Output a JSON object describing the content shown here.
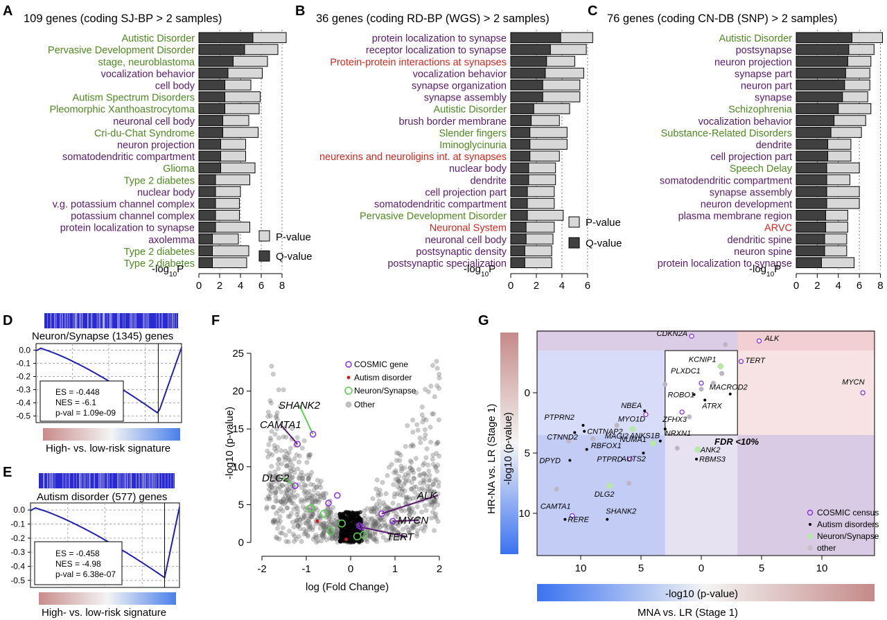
{
  "chart_data": [
    {
      "panel": "A",
      "type": "bar",
      "title": "109 genes (coding SJ-BP > 2 samples)",
      "xlabel": "-log10P",
      "xticks": [
        0,
        2,
        4,
        6,
        8
      ],
      "xlim": [
        0,
        8.8
      ],
      "legend": [
        "P-value",
        "Q-value"
      ],
      "terms": [
        {
          "label": "Autistic Disorder",
          "cat": "disease",
          "p": 8.4,
          "q": 5.2
        },
        {
          "label": "Pervasive Development Disorder",
          "cat": "disease",
          "p": 7.6,
          "q": 4.4
        },
        {
          "label": "stage, neuroblastoma",
          "cat": "disease",
          "p": 6.6,
          "q": 3.3
        },
        {
          "label": "vocalization behavior",
          "cat": "go",
          "p": 6.1,
          "q": 2.8
        },
        {
          "label": "cell body",
          "cat": "go",
          "p": 5.0,
          "q": 2.5
        },
        {
          "label": "Autism Spectrum Disorders",
          "cat": "disease",
          "p": 5.9,
          "q": 2.5
        },
        {
          "label": "Pleomorphic Xanthoastrocytoma",
          "cat": "disease",
          "p": 5.8,
          "q": 2.5
        },
        {
          "label": "neuronal cell body",
          "cat": "go",
          "p": 4.8,
          "q": 2.3
        },
        {
          "label": "Cri-du-Chat Syndrome",
          "cat": "disease",
          "p": 5.7,
          "q": 2.3
        },
        {
          "label": "neuron projection",
          "cat": "go",
          "p": 4.5,
          "q": 2.1
        },
        {
          "label": "somatodendritic compartment",
          "cat": "go",
          "p": 4.5,
          "q": 2.1
        },
        {
          "label": "Glioma",
          "cat": "disease",
          "p": 5.4,
          "q": 2.1
        },
        {
          "label": "Type 2 diabetes",
          "cat": "disease",
          "p": 4.9,
          "q": 1.6
        },
        {
          "label": "nuclear body",
          "cat": "go",
          "p": 4.0,
          "q": 1.6
        },
        {
          "label": "v.g. potassium channel complex",
          "cat": "go",
          "p": 3.9,
          "q": 1.6
        },
        {
          "label": "potassium channel complex",
          "cat": "go",
          "p": 3.9,
          "q": 1.6
        },
        {
          "label": "protein localization to synapse",
          "cat": "go",
          "p": 4.9,
          "q": 1.6
        },
        {
          "label": "axolemma",
          "cat": "go",
          "p": 3.8,
          "q": 1.3
        },
        {
          "label": "Type 2 diabetes",
          "cat": "disease",
          "p": 4.8,
          "q": 1.3
        },
        {
          "label": "Type 2 diabetes",
          "cat": "disease",
          "p": 4.6,
          "q": 1.3
        }
      ]
    },
    {
      "panel": "B",
      "type": "bar",
      "title": "36 genes (coding RD-BP (WGS) > 2 samples)",
      "xlabel": "-log10P",
      "xticks": [
        0,
        2,
        4,
        6
      ],
      "xlim": [
        0,
        6.6
      ],
      "legend": [
        "P-value",
        "Q-value"
      ],
      "terms": [
        {
          "label": "protein localization to synapse",
          "cat": "go",
          "p": 6.4,
          "q": 3.9
        },
        {
          "label": "receptor localization to synapse",
          "cat": "go",
          "p": 5.9,
          "q": 3.1
        },
        {
          "label": "Protein-protein interactions at synapses",
          "cat": "pathway",
          "p": 5.0,
          "q": 2.8
        },
        {
          "label": "vocalization behavior",
          "cat": "go",
          "p": 5.7,
          "q": 2.7
        },
        {
          "label": "synapse organization",
          "cat": "go",
          "p": 5.4,
          "q": 2.5
        },
        {
          "label": "synapse assembly",
          "cat": "go",
          "p": 5.4,
          "q": 2.5
        },
        {
          "label": "Autistic Disorder",
          "cat": "disease",
          "p": 4.6,
          "q": 1.8
        },
        {
          "label": "brush border membrane",
          "cat": "go",
          "p": 3.8,
          "q": 1.6
        },
        {
          "label": "Slender fingers",
          "cat": "disease",
          "p": 4.4,
          "q": 1.5
        },
        {
          "label": "Iminoglycinuria",
          "cat": "disease",
          "p": 4.4,
          "q": 1.5
        },
        {
          "label": "neurexins and neuroligins int. at synapses",
          "cat": "pathway",
          "p": 3.8,
          "q": 1.5
        },
        {
          "label": "nuclear body",
          "cat": "go",
          "p": 3.5,
          "q": 1.4
        },
        {
          "label": "dendrite",
          "cat": "go",
          "p": 3.5,
          "q": 1.4
        },
        {
          "label": "cell projection part",
          "cat": "go",
          "p": 3.4,
          "q": 1.3
        },
        {
          "label": "somatodendritic compartment",
          "cat": "go",
          "p": 3.4,
          "q": 1.3
        },
        {
          "label": "Pervasive Development Disorder",
          "cat": "disease",
          "p": 4.1,
          "q": 1.3
        },
        {
          "label": "Neuronal System",
          "cat": "pathway",
          "p": 3.4,
          "q": 1.2
        },
        {
          "label": "neuronal cell body",
          "cat": "go",
          "p": 3.3,
          "q": 1.2
        },
        {
          "label": "postsynaptic density",
          "cat": "go",
          "p": 3.2,
          "q": 1.1
        },
        {
          "label": "postsynaptic specialization",
          "cat": "go",
          "p": 3.2,
          "q": 1.1
        }
      ]
    },
    {
      "panel": "C",
      "type": "bar",
      "title": "76 genes (coding CN-DB (SNP) > 2 samples)",
      "xlabel": "-log10P",
      "xticks": [
        0,
        2,
        4,
        6,
        8
      ],
      "xlim": [
        0,
        8.3
      ],
      "legend": [],
      "terms": [
        {
          "label": "Autistic Disorder",
          "cat": "disease",
          "p": 8.2,
          "q": 5.3
        },
        {
          "label": "postsynapse",
          "cat": "go",
          "p": 7.4,
          "q": 5.0
        },
        {
          "label": "neuron projection",
          "cat": "go",
          "p": 7.1,
          "q": 4.9
        },
        {
          "label": "synapse part",
          "cat": "go",
          "p": 7.0,
          "q": 4.7
        },
        {
          "label": "neuron part",
          "cat": "go",
          "p": 7.0,
          "q": 4.6
        },
        {
          "label": "synapse",
          "cat": "go",
          "p": 6.8,
          "q": 4.4
        },
        {
          "label": "Schizophrenia",
          "cat": "disease",
          "p": 7.1,
          "q": 4.0
        },
        {
          "label": "vocalization behavior",
          "cat": "go",
          "p": 6.6,
          "q": 3.6
        },
        {
          "label": "Substance-Related Disorders",
          "cat": "disease",
          "p": 6.2,
          "q": 3.3
        },
        {
          "label": "dendrite",
          "cat": "go",
          "p": 5.2,
          "q": 3.0
        },
        {
          "label": "cell projection part",
          "cat": "go",
          "p": 5.2,
          "q": 3.0
        },
        {
          "label": "Speech Delay",
          "cat": "disease",
          "p": 6.0,
          "q": 2.9
        },
        {
          "label": "somatodendritic compartment",
          "cat": "go",
          "p": 5.1,
          "q": 2.9
        },
        {
          "label": "synapse assembly",
          "cat": "go",
          "p": 6.0,
          "q": 2.9
        },
        {
          "label": "neuron development",
          "cat": "go",
          "p": 6.0,
          "q": 2.9
        },
        {
          "label": "plasma membrane region",
          "cat": "go",
          "p": 4.9,
          "q": 2.8
        },
        {
          "label": "ARVC",
          "cat": "pathway",
          "p": 4.9,
          "q": 2.8
        },
        {
          "label": "dendritic spine",
          "cat": "go",
          "p": 4.8,
          "q": 2.7
        },
        {
          "label": "neuron spine",
          "cat": "go",
          "p": 4.8,
          "q": 2.7
        },
        {
          "label": "protein localization to synapse",
          "cat": "go",
          "p": 5.5,
          "q": 2.4
        }
      ]
    },
    {
      "panel": "D",
      "type": "line",
      "title": "Neuron/Synapse (1345) genes",
      "caption": "High- vs. low-risk signature",
      "yticks": [
        "0.0",
        "-0.1",
        "-0.2",
        "-0.3",
        "-0.4",
        "-0.5"
      ],
      "stats": [
        "ES = -0.448",
        "NES = -6.1",
        "p-val = 1.09e-09"
      ]
    },
    {
      "panel": "E",
      "type": "line",
      "title": "Autism disorder (577) genes",
      "caption": "High- vs. low-risk signature",
      "yticks": [
        "0.0",
        "-0.1",
        "-0.2",
        "-0.3",
        "-0.4",
        "-0.5"
      ],
      "stats": [
        "ES = -0.458",
        "NES = -4.98",
        "p-val = 6.38e-07"
      ]
    },
    {
      "panel": "F",
      "type": "scatter",
      "xlabel": "log (Fold Change)",
      "ylabel": "-log10 (p-value)",
      "xticks": [
        -2,
        -1,
        0,
        1,
        2
      ],
      "yticks": [
        0,
        5,
        10,
        15,
        20,
        25
      ],
      "xlim": [
        -2.2,
        2.2
      ],
      "ylim": [
        -1,
        26
      ],
      "legend": [
        "COSMIC gene",
        "Autism disorder",
        "Neuron/Synapse",
        "Other"
      ],
      "genes": [
        {
          "name": "SHANK2",
          "x": -0.85,
          "y": 14.3
        },
        {
          "name": "CAMTA1",
          "x": -1.2,
          "y": 13.0
        },
        {
          "name": "DLG2",
          "x": -1.25,
          "y": 7.5
        },
        {
          "name": "ALK",
          "x": 0.7,
          "y": 3.8
        },
        {
          "name": "MYCN",
          "x": 0.95,
          "y": 2.8
        },
        {
          "name": "TERT",
          "x": 0.25,
          "y": 2.0
        }
      ]
    },
    {
      "panel": "G",
      "type": "scatter",
      "xlabel": "-log10 (p-value)",
      "xlabel2": "MNA vs. LR (Stage 1)",
      "ylabel": "-log10 (p-value)",
      "ylabel2": "HR-NA vs. LR (Stage 1)",
      "xticks": [
        "10",
        "5",
        "0",
        "5",
        "10"
      ],
      "yticks": [
        "0",
        "5",
        "10"
      ],
      "annotation": "FDR <10%",
      "legend": [
        "COSMIC census",
        "Autism disorders",
        "Neuron/Synapse",
        "other"
      ],
      "genes": [
        {
          "name": "CDKN2A",
          "x": -0.8,
          "y": -4.7,
          "cls": "cosmic"
        },
        {
          "name": "ALK",
          "x": 4.8,
          "y": -4.3,
          "cls": "cosmic"
        },
        {
          "name": "TERT",
          "x": 3.3,
          "y": -2.6,
          "cls": "cosmic"
        },
        {
          "name": "KCNIP1",
          "x": 1.6,
          "y": -2.2,
          "cls": "neuron"
        },
        {
          "name": "MYCN",
          "x": 13.4,
          "y": 0.0,
          "cls": "cosmic"
        },
        {
          "name": "PLXDC1",
          "x": 0,
          "y": -0.8,
          "cls": "cosmic"
        },
        {
          "name": "MACROD2",
          "x": 2.4,
          "y": 0.1,
          "cls": "autism"
        },
        {
          "name": "ROBO1",
          "x": -0.6,
          "y": 0.15,
          "cls": "autism"
        },
        {
          "name": "ATRX",
          "x": 0.3,
          "y": 0.6,
          "cls": "autism"
        },
        {
          "name": "NBEA",
          "x": -4.7,
          "y": 1.5,
          "cls": "autism"
        },
        {
          "name": "MYO1D",
          "x": -4.6,
          "y": 1.8,
          "cls": "cosmic"
        },
        {
          "name": "ZFHX3",
          "x": -1.6,
          "y": 1.6,
          "cls": "cosmic"
        },
        {
          "name": "PTPRN2",
          "x": -9.8,
          "y": 2.7,
          "cls": "autism"
        },
        {
          "name": "CNTNAP2",
          "x": -9.7,
          "y": 3.2,
          "cls": "autism"
        },
        {
          "name": "MAGI2",
          "x": -5.7,
          "y": 3.0,
          "cls": "neuron"
        },
        {
          "name": "NRXN1",
          "x": -3.0,
          "y": 3.0,
          "cls": "autism"
        },
        {
          "name": "CTNND2",
          "x": -10.5,
          "y": 3.3,
          "cls": "autism"
        },
        {
          "name": "RBFOX1",
          "x": -9.5,
          "y": 4.7,
          "cls": "autism"
        },
        {
          "name": "NUMA1",
          "x": -4.0,
          "y": 4.2,
          "cls": "neuron"
        },
        {
          "name": "ANKS1B",
          "x": -3.4,
          "y": 4.0,
          "cls": "autism"
        },
        {
          "name": "ANK2",
          "x": -0.3,
          "y": 4.7,
          "cls": "neuron"
        },
        {
          "name": "DPYD",
          "x": -10.9,
          "y": 5.6,
          "cls": "autism"
        },
        {
          "name": "PTPRD",
          "x": -5.9,
          "y": 5.5,
          "cls": "cosmic"
        },
        {
          "name": "AUTS2",
          "x": -4.8,
          "y": 5.0,
          "cls": "autism"
        },
        {
          "name": "RBMS3",
          "x": -0.4,
          "y": 5.5,
          "cls": "autism"
        },
        {
          "name": "DLG2",
          "x": -7.6,
          "y": 7.7,
          "cls": "neuron"
        },
        {
          "name": "CAMTA1",
          "x": -10.7,
          "y": 10.2,
          "cls": "cosmic"
        },
        {
          "name": "RERE",
          "x": -11.3,
          "y": 10.5,
          "cls": "autism"
        },
        {
          "name": "SHANK2",
          "x": -7.8,
          "y": 10.5,
          "cls": "autism"
        }
      ]
    }
  ],
  "panel_labels": {
    "a": "A",
    "b": "B",
    "c": "C",
    "d": "D",
    "e": "E",
    "f": "F",
    "g": "G"
  },
  "colors": {
    "disease": "#4d8a1f",
    "go": "#5a1a6e",
    "pathway": "#d1281e",
    "q": "#404040",
    "p": "#d8d8d8",
    "gsea": "#2020b0"
  }
}
